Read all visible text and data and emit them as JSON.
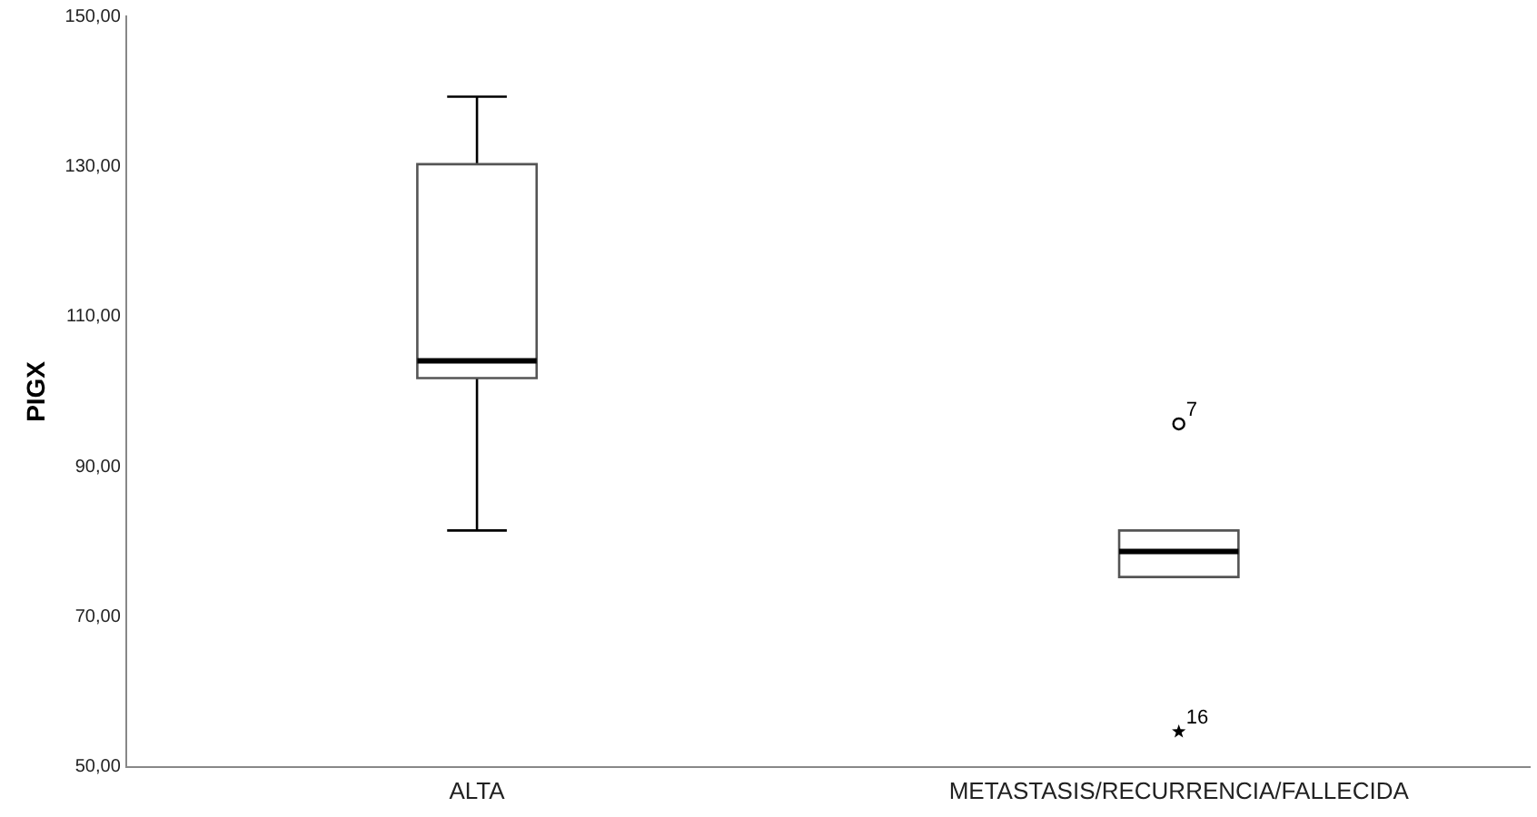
{
  "chart_data": {
    "type": "box",
    "ylabel": "PIGX",
    "categories": [
      "ALTA",
      "METASTASIS/RECURRENCIA/FALLECIDA"
    ],
    "boxes": [
      {
        "low": 81.5,
        "q1": 101.8,
        "median": 104.1,
        "q3": 130.3,
        "high": 139.3
      },
      {
        "low": 75.3,
        "q1": 75.3,
        "median": 78.7,
        "q3": 81.5,
        "high": 81.5,
        "outliers": [
          95.7,
          54.7
        ]
      }
    ],
    "ylim": [
      50,
      150
    ],
    "yticks": [
      {
        "value": 50,
        "label": "50,00"
      },
      {
        "value": 70,
        "label": "70,00"
      },
      {
        "value": 90,
        "label": "90,00"
      },
      {
        "value": 110,
        "label": "110,00"
      },
      {
        "value": 130,
        "label": "130,00"
      },
      {
        "value": 150,
        "label": "150,00"
      }
    ],
    "annotations": [
      "7",
      "16"
    ],
    "grid": false,
    "legend": false
  }
}
